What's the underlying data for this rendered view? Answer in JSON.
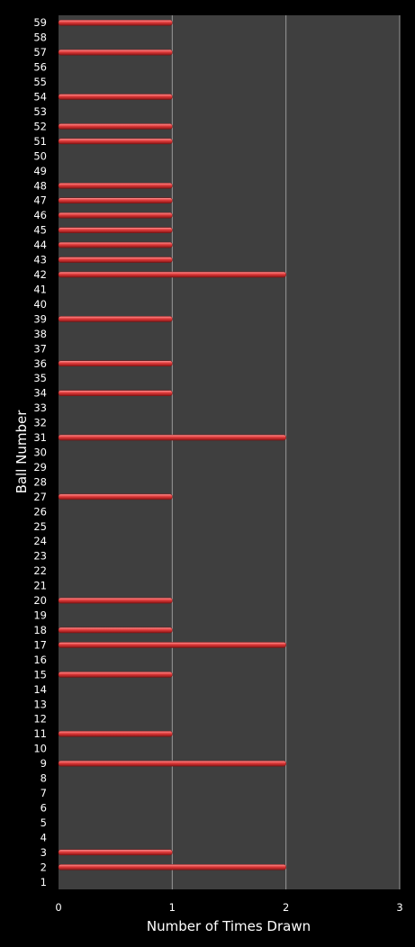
{
  "chart_data": {
    "type": "bar",
    "orientation": "horizontal",
    "xlabel": "Number of Times Drawn",
    "ylabel": "Ball Number",
    "xlim": [
      0,
      3
    ],
    "xticks": [
      0,
      1,
      2,
      3
    ],
    "grid": true,
    "categories": [
      "1",
      "2",
      "3",
      "4",
      "5",
      "6",
      "7",
      "8",
      "9",
      "10",
      "11",
      "12",
      "13",
      "14",
      "15",
      "16",
      "17",
      "18",
      "19",
      "20",
      "21",
      "22",
      "23",
      "24",
      "25",
      "26",
      "27",
      "28",
      "29",
      "30",
      "31",
      "32",
      "33",
      "34",
      "35",
      "36",
      "37",
      "38",
      "39",
      "40",
      "41",
      "42",
      "43",
      "44",
      "45",
      "46",
      "47",
      "48",
      "49",
      "50",
      "51",
      "52",
      "53",
      "54",
      "55",
      "56",
      "57",
      "58",
      "59"
    ],
    "values": [
      0,
      2,
      1,
      0,
      0,
      0,
      0,
      0,
      2,
      0,
      1,
      0,
      0,
      0,
      1,
      0,
      2,
      1,
      0,
      1,
      0,
      0,
      0,
      0,
      0,
      0,
      1,
      0,
      0,
      0,
      2,
      0,
      0,
      1,
      0,
      1,
      0,
      0,
      1,
      0,
      0,
      2,
      1,
      1,
      1,
      1,
      1,
      1,
      0,
      0,
      1,
      1,
      0,
      1,
      0,
      0,
      1,
      0,
      1
    ],
    "colors": {
      "background": "#000000",
      "plot_area": "#3f3f3f",
      "bar": "#e03a3a",
      "bar_highlight": "#ff9a9a",
      "gridline": "#9a9a9a",
      "text": "#ffffff"
    }
  }
}
